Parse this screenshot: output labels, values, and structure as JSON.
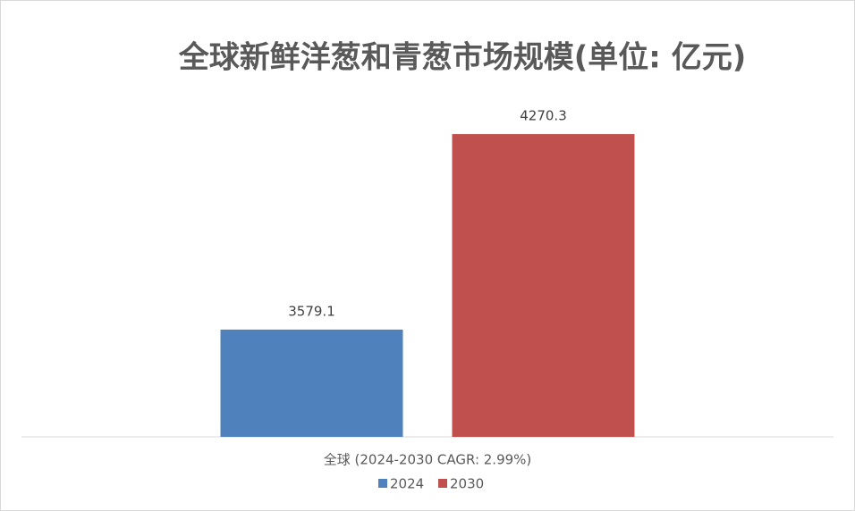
{
  "chart_data": {
    "type": "bar",
    "title": "全球新鲜洋葱和青葱市场规模(单位: 亿元)",
    "categories": [
      "全球 (2024-2030 CAGR: 2.99%)"
    ],
    "series": [
      {
        "name": "2024",
        "color": "#4f81bd",
        "values": [
          3579.1
        ]
      },
      {
        "name": "2030",
        "color": "#c0504d",
        "values": [
          4270.3
        ]
      }
    ],
    "ylim": [
      3200,
      4400
    ],
    "legend": "bottom"
  }
}
